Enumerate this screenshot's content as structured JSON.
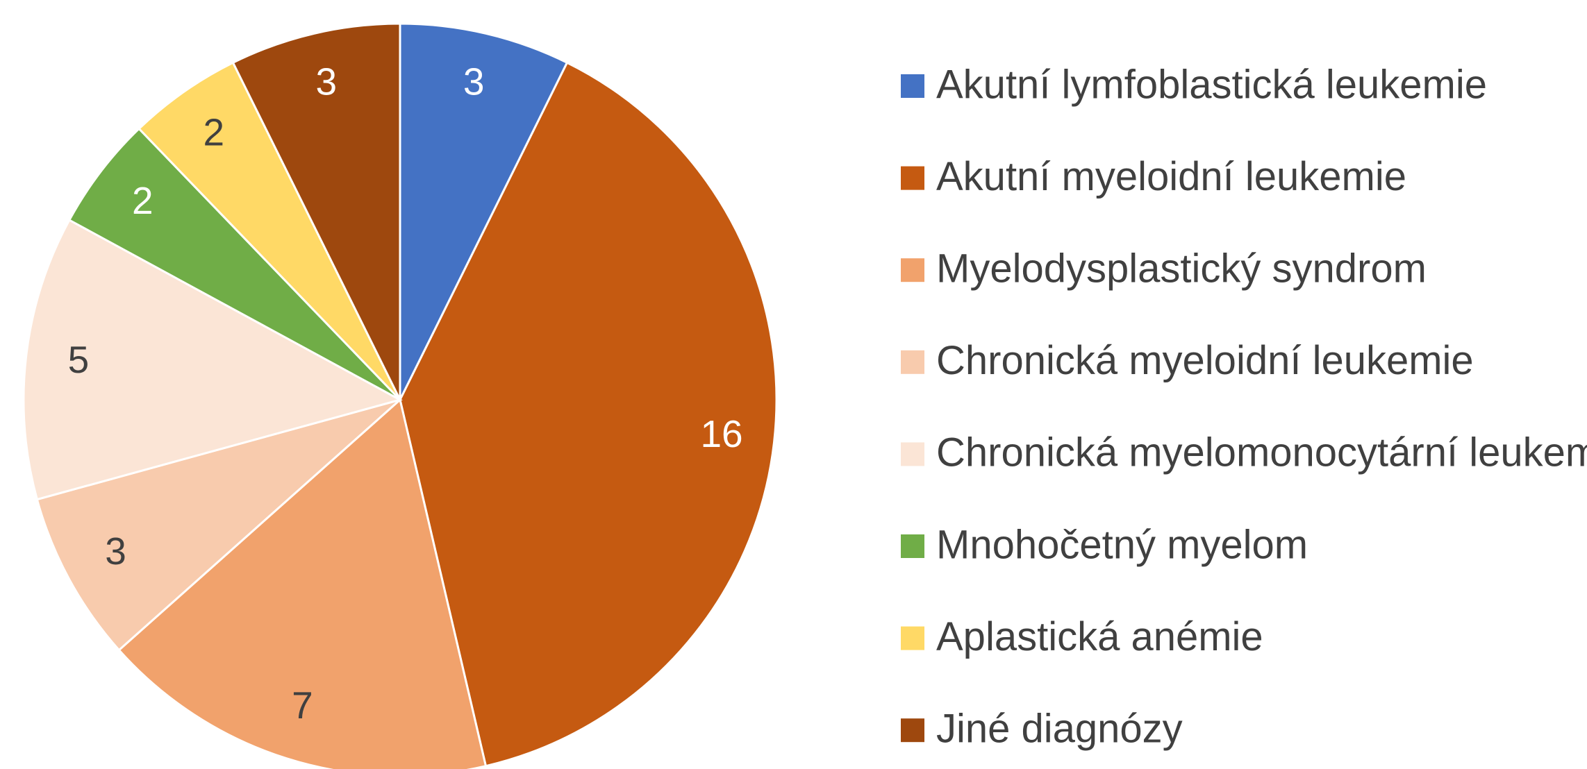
{
  "chart_data": {
    "type": "pie",
    "categories": [
      "Akutní lymfoblastická leukemie",
      "Akutní myeloidní leukemie",
      "Myelodysplastický syndrom",
      "Chronická myeloidní leukemie",
      "Chronická myelomonocytární leukemie",
      "Mnohočetný myelom",
      "Aplastická anémie",
      "Jiné diagnózy"
    ],
    "values": [
      3,
      16,
      7,
      3,
      5,
      2,
      2,
      3
    ],
    "colors": [
      "#4472c4",
      "#c55a11",
      "#f1a26c",
      "#f8cbad",
      "#fbe5d6",
      "#70ad47",
      "#ffd966",
      "#9e480e"
    ],
    "legend": "right"
  }
}
